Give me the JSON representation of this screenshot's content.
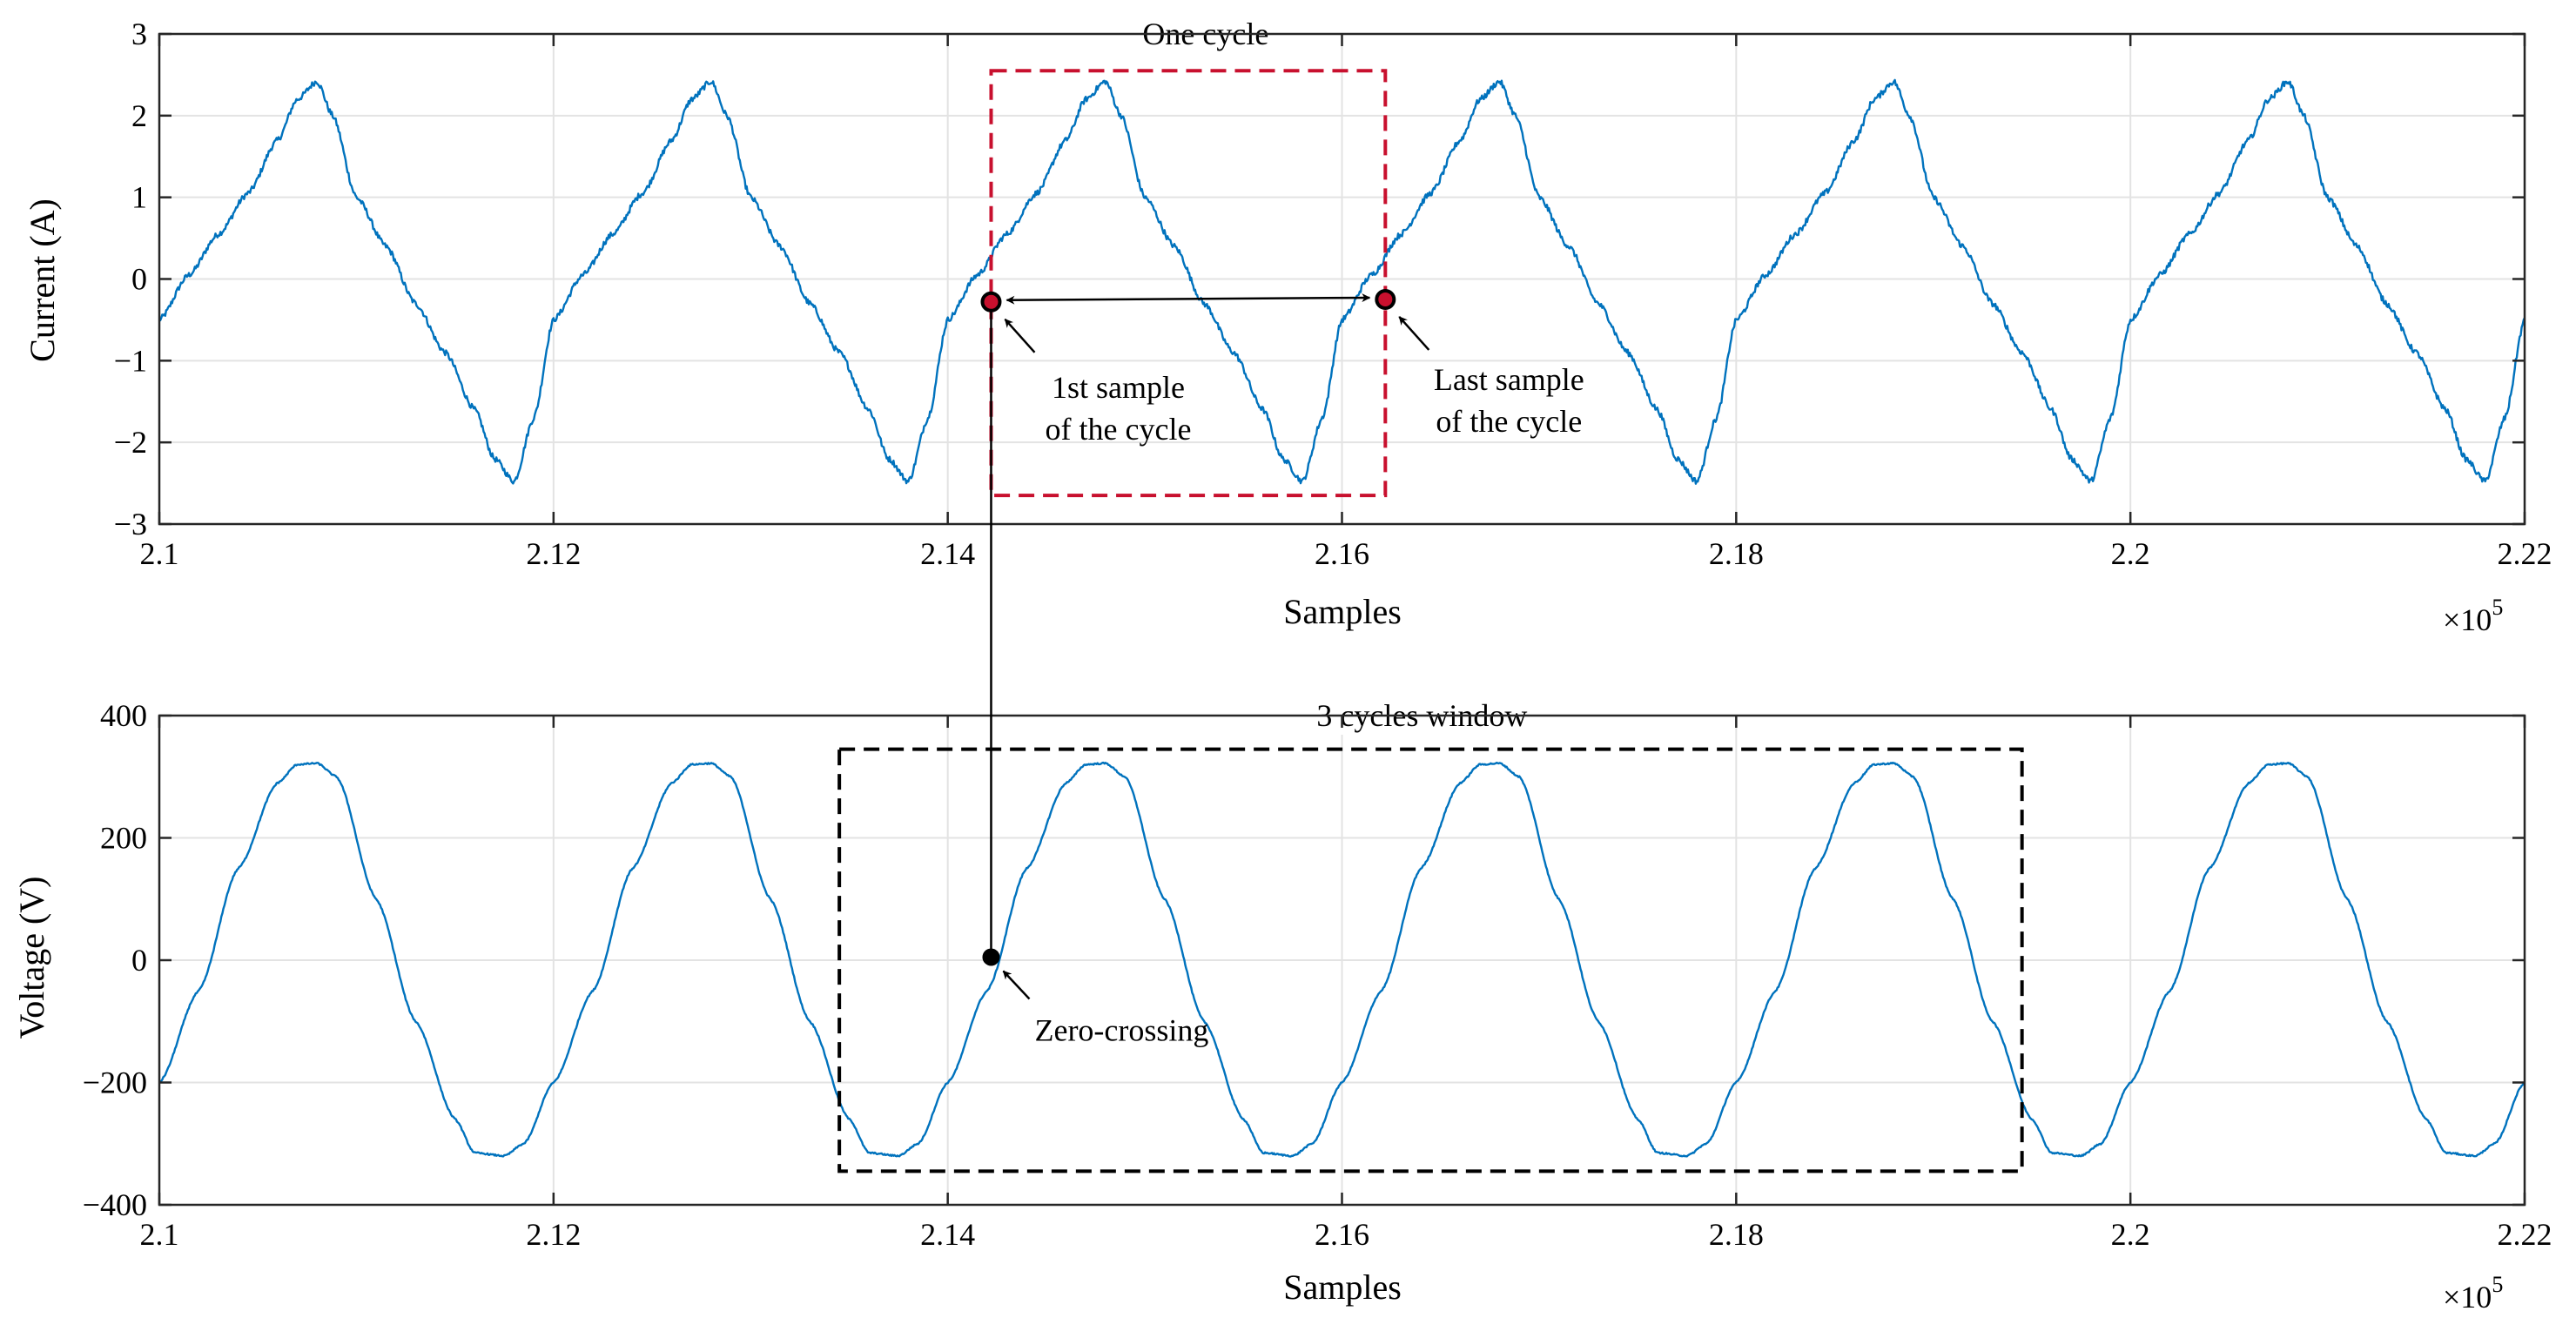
{
  "chart_data": [
    {
      "type": "line",
      "panel": "current",
      "xlabel": "Samples",
      "ylabel": "Current (A)",
      "x_multiplier_label": "×10",
      "x_multiplier_exponent": "5",
      "xlim": [
        2.1,
        2.22
      ],
      "ylim": [
        -3,
        3
      ],
      "xticks": [
        "2.1",
        "2.12",
        "2.14",
        "2.16",
        "2.18",
        "2.2",
        "2.22"
      ],
      "yticks": [
        "3",
        "2",
        "1",
        "0",
        "−1",
        "−2",
        "−3"
      ],
      "grid": true,
      "series": [
        {
          "color": "#0072bd",
          "period": 0.02,
          "x_start": 2.1,
          "x_end": 2.22,
          "waveform_one_period": [
            [
              0.0,
              -0.5
            ],
            [
              0.0015,
              0.05
            ],
            [
              0.003,
              0.55
            ],
            [
              0.0045,
              1.05
            ],
            [
              0.006,
              1.7
            ],
            [
              0.007,
              2.2
            ],
            [
              0.008,
              2.42
            ],
            [
              0.0088,
              2.0
            ],
            [
              0.01,
              1.0
            ],
            [
              0.0115,
              0.4
            ],
            [
              0.013,
              -0.3
            ],
            [
              0.0145,
              -0.9
            ],
            [
              0.016,
              -1.6
            ],
            [
              0.017,
              -2.2
            ],
            [
              0.018,
              -2.48
            ],
            [
              0.019,
              -1.7
            ],
            [
              0.02,
              -0.5
            ]
          ]
        }
      ],
      "annotations": {
        "one_cycle_label": "One cycle",
        "first_sample_line1": "1st sample",
        "first_sample_line2": "of the cycle",
        "last_sample_line1": "Last sample",
        "last_sample_line2": "of the cycle",
        "first_sample_point": [
          2.1422,
          -0.28
        ],
        "last_sample_point": [
          2.1622,
          -0.25
        ],
        "one_cycle_box_x": [
          2.1422,
          2.1622
        ],
        "one_cycle_box_y": [
          -2.65,
          2.55
        ],
        "one_cycle_color": "#c8102e"
      }
    },
    {
      "type": "line",
      "panel": "voltage",
      "xlabel": "Samples",
      "ylabel": "Voltage (V)",
      "x_multiplier_label": "×10",
      "x_multiplier_exponent": "5",
      "xlim": [
        2.1,
        2.22
      ],
      "ylim": [
        -400,
        400
      ],
      "xticks": [
        "2.1",
        "2.12",
        "2.14",
        "2.16",
        "2.18",
        "2.2",
        "2.22"
      ],
      "yticks": [
        "400",
        "200",
        "0",
        "−200",
        "−400"
      ],
      "grid": true,
      "series": [
        {
          "color": "#0072bd",
          "period": 0.02,
          "x_start": 2.1,
          "x_end": 2.22,
          "waveform_one_period": [
            [
              0.0,
              -200
            ],
            [
              0.002,
              -50
            ],
            [
              0.004,
              150
            ],
            [
              0.006,
              290
            ],
            [
              0.007,
              320
            ],
            [
              0.008,
              322
            ],
            [
              0.009,
              300
            ],
            [
              0.011,
              100
            ],
            [
              0.013,
              -100
            ],
            [
              0.015,
              -260
            ],
            [
              0.016,
              -315
            ],
            [
              0.0175,
              -320
            ],
            [
              0.0185,
              -300
            ],
            [
              0.02,
              -200
            ]
          ]
        }
      ],
      "annotations": {
        "window_label": "3 cycles window",
        "zero_crossing_label": "Zero-crossing",
        "zero_crossing_point": [
          2.1422,
          5
        ],
        "window_box_x": [
          2.1345,
          2.1945
        ],
        "window_box_y": [
          -345,
          345
        ],
        "window_color": "#000000"
      }
    }
  ]
}
